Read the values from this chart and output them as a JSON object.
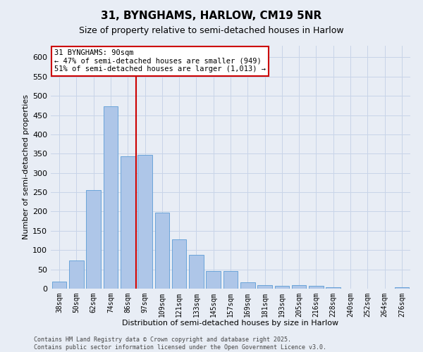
{
  "title": "31, BYNGHAMS, HARLOW, CM19 5NR",
  "subtitle": "Size of property relative to semi-detached houses in Harlow",
  "xlabel": "Distribution of semi-detached houses by size in Harlow",
  "ylabel": "Number of semi-detached properties",
  "categories": [
    "38sqm",
    "50sqm",
    "62sqm",
    "74sqm",
    "86sqm",
    "97sqm",
    "109sqm",
    "121sqm",
    "133sqm",
    "145sqm",
    "157sqm",
    "169sqm",
    "181sqm",
    "193sqm",
    "205sqm",
    "216sqm",
    "228sqm",
    "240sqm",
    "252sqm",
    "264sqm",
    "276sqm"
  ],
  "values": [
    18,
    73,
    255,
    473,
    343,
    347,
    197,
    127,
    88,
    46,
    46,
    17,
    9,
    8,
    9,
    8,
    3,
    0,
    0,
    0,
    4
  ],
  "bar_color": "#aec6e8",
  "bar_edge_color": "#5b9bd5",
  "vline_x_index": 4,
  "vline_color": "#cc0000",
  "annotation_text": "31 BYNGHAMS: 90sqm\n← 47% of semi-detached houses are smaller (949)\n51% of semi-detached houses are larger (1,013) →",
  "annotation_box_color": "#cc0000",
  "footer_text": "Contains HM Land Registry data © Crown copyright and database right 2025.\nContains public sector information licensed under the Open Government Licence v3.0.",
  "ylim": [
    0,
    630
  ],
  "yticks": [
    0,
    50,
    100,
    150,
    200,
    250,
    300,
    350,
    400,
    450,
    500,
    550,
    600
  ],
  "grid_color": "#c8d4e8",
  "bg_color": "#e8edf5",
  "plot_bg_color": "#e8edf5",
  "title_fontsize": 11,
  "subtitle_fontsize": 9,
  "ylabel_fontsize": 8,
  "xlabel_fontsize": 8,
  "ytick_fontsize": 8,
  "xtick_fontsize": 7,
  "footer_fontsize": 6,
  "annotation_fontsize": 7.5
}
